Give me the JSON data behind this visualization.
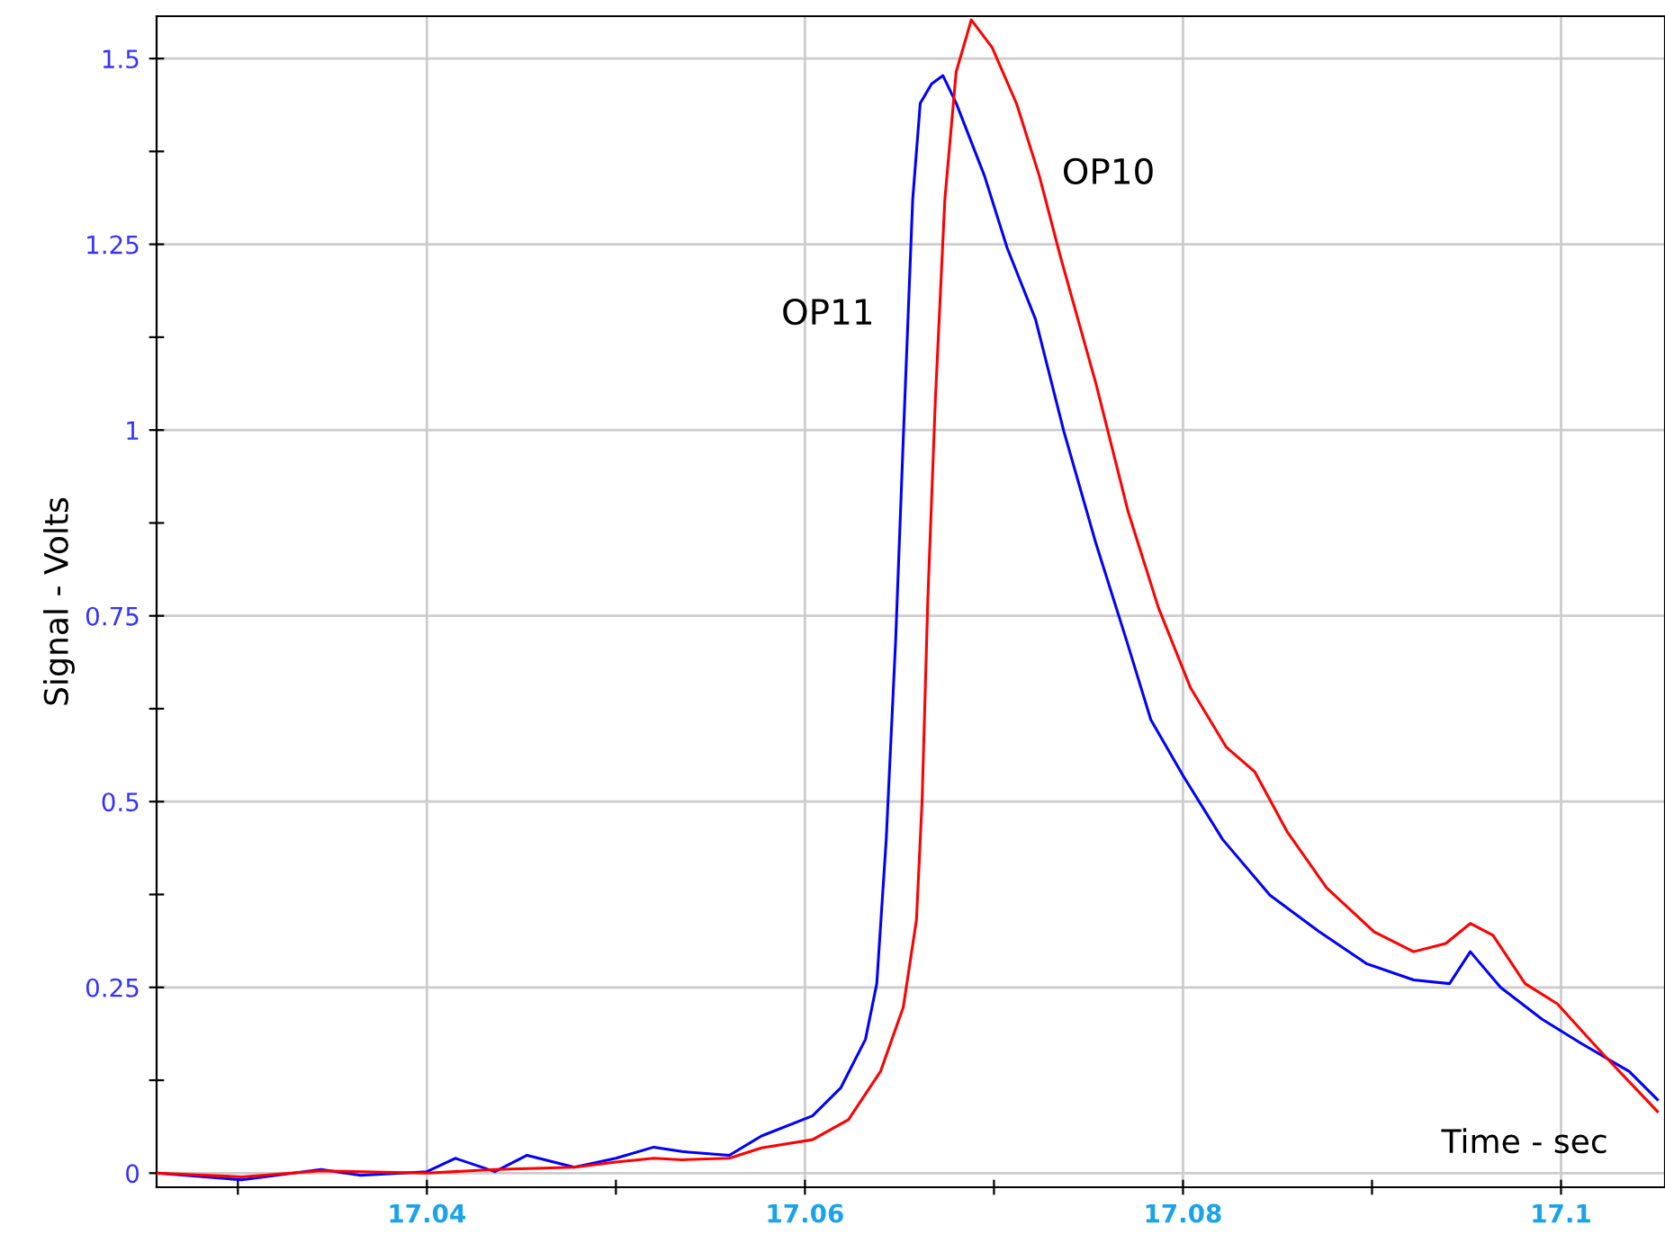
{
  "chart_data": {
    "type": "line",
    "xlabel": "Time - sec",
    "ylabel": "Signal - Volts",
    "xlim": [
      17.0257,
      17.1055
    ],
    "ylim": [
      -0.019,
      1.557
    ],
    "xticks": [
      {
        "value": 17.03,
        "label": null
      },
      17.04,
      {
        "value": 17.05,
        "label": null
      },
      17.06,
      {
        "value": 17.07,
        "label": null
      },
      17.08,
      {
        "value": 17.09,
        "label": null
      },
      17.1
    ],
    "yticks": [
      0,
      {
        "value": 0.125,
        "label": null
      },
      0.25,
      {
        "value": 0.375,
        "label": null
      },
      0.5,
      {
        "value": 0.625,
        "label": null
      },
      0.75,
      {
        "value": 0.875,
        "label": null
      },
      1,
      {
        "value": 1.125,
        "label": null
      },
      1.25,
      {
        "value": 1.375,
        "label": null
      },
      1.5
    ],
    "grid": true,
    "legend": false,
    "marker": "none",
    "line_style": "solid",
    "series": [
      {
        "name": "OP11",
        "color": "#0000ff",
        "x": [
          17.0257,
          17.0302,
          17.0344,
          17.0365,
          17.04,
          17.0415,
          17.0436,
          17.0453,
          17.0478,
          17.05,
          17.052,
          17.0535,
          17.056,
          17.0577,
          17.0604,
          17.0619,
          17.0632,
          17.0638,
          17.0643,
          17.0648,
          17.0652,
          17.0657,
          17.0661,
          17.0667,
          17.0673,
          17.068,
          17.0695,
          17.0707,
          17.0722,
          17.0737,
          17.0754,
          17.077,
          17.0783,
          17.08,
          17.0821,
          17.0846,
          17.0872,
          17.0897,
          17.0922,
          17.0941,
          17.0952,
          17.0968,
          17.099,
          17.1011,
          17.1036,
          17.1051
        ],
        "values": [
          0,
          -0.009,
          0.005,
          -0.003,
          0.002,
          0.02,
          0.002,
          0.024,
          0.008,
          0.02,
          0.035,
          0.029,
          0.024,
          0.05,
          0.077,
          0.115,
          0.18,
          0.255,
          0.449,
          0.718,
          0.987,
          1.31,
          1.44,
          1.466,
          1.477,
          1.44,
          1.342,
          1.245,
          1.149,
          0.998,
          0.847,
          0.718,
          0.61,
          0.535,
          0.449,
          0.374,
          0.325,
          0.282,
          0.26,
          0.255,
          0.298,
          0.25,
          0.207,
          0.174,
          0.137,
          0.099
        ]
      },
      {
        "name": "OP10",
        "color": "#ff0000",
        "x": [
          17.0257,
          17.0302,
          17.0344,
          17.04,
          17.0436,
          17.0478,
          17.05,
          17.052,
          17.0535,
          17.056,
          17.0577,
          17.0604,
          17.0623,
          17.064,
          17.0652,
          17.0659,
          17.0662,
          17.0665,
          17.0669,
          17.0674,
          17.068,
          17.0688,
          17.0699,
          17.0712,
          17.0724,
          17.0735,
          17.0754,
          17.0771,
          17.0787,
          17.0804,
          17.0823,
          17.0838,
          17.0855,
          17.0876,
          17.0901,
          17.0922,
          17.0939,
          17.0952,
          17.0964,
          17.0981,
          17.0998,
          17.1023,
          17.1051
        ],
        "values": [
          0,
          -0.005,
          0.003,
          0,
          0.005,
          0.008,
          0.015,
          0.02,
          0.018,
          0.02,
          0.034,
          0.045,
          0.072,
          0.137,
          0.223,
          0.341,
          0.503,
          0.772,
          1.041,
          1.31,
          1.482,
          1.552,
          1.515,
          1.439,
          1.342,
          1.235,
          1.062,
          0.89,
          0.761,
          0.653,
          0.573,
          0.54,
          0.46,
          0.384,
          0.325,
          0.298,
          0.309,
          0.336,
          0.32,
          0.255,
          0.228,
          0.158,
          0.083
        ]
      }
    ]
  }
}
